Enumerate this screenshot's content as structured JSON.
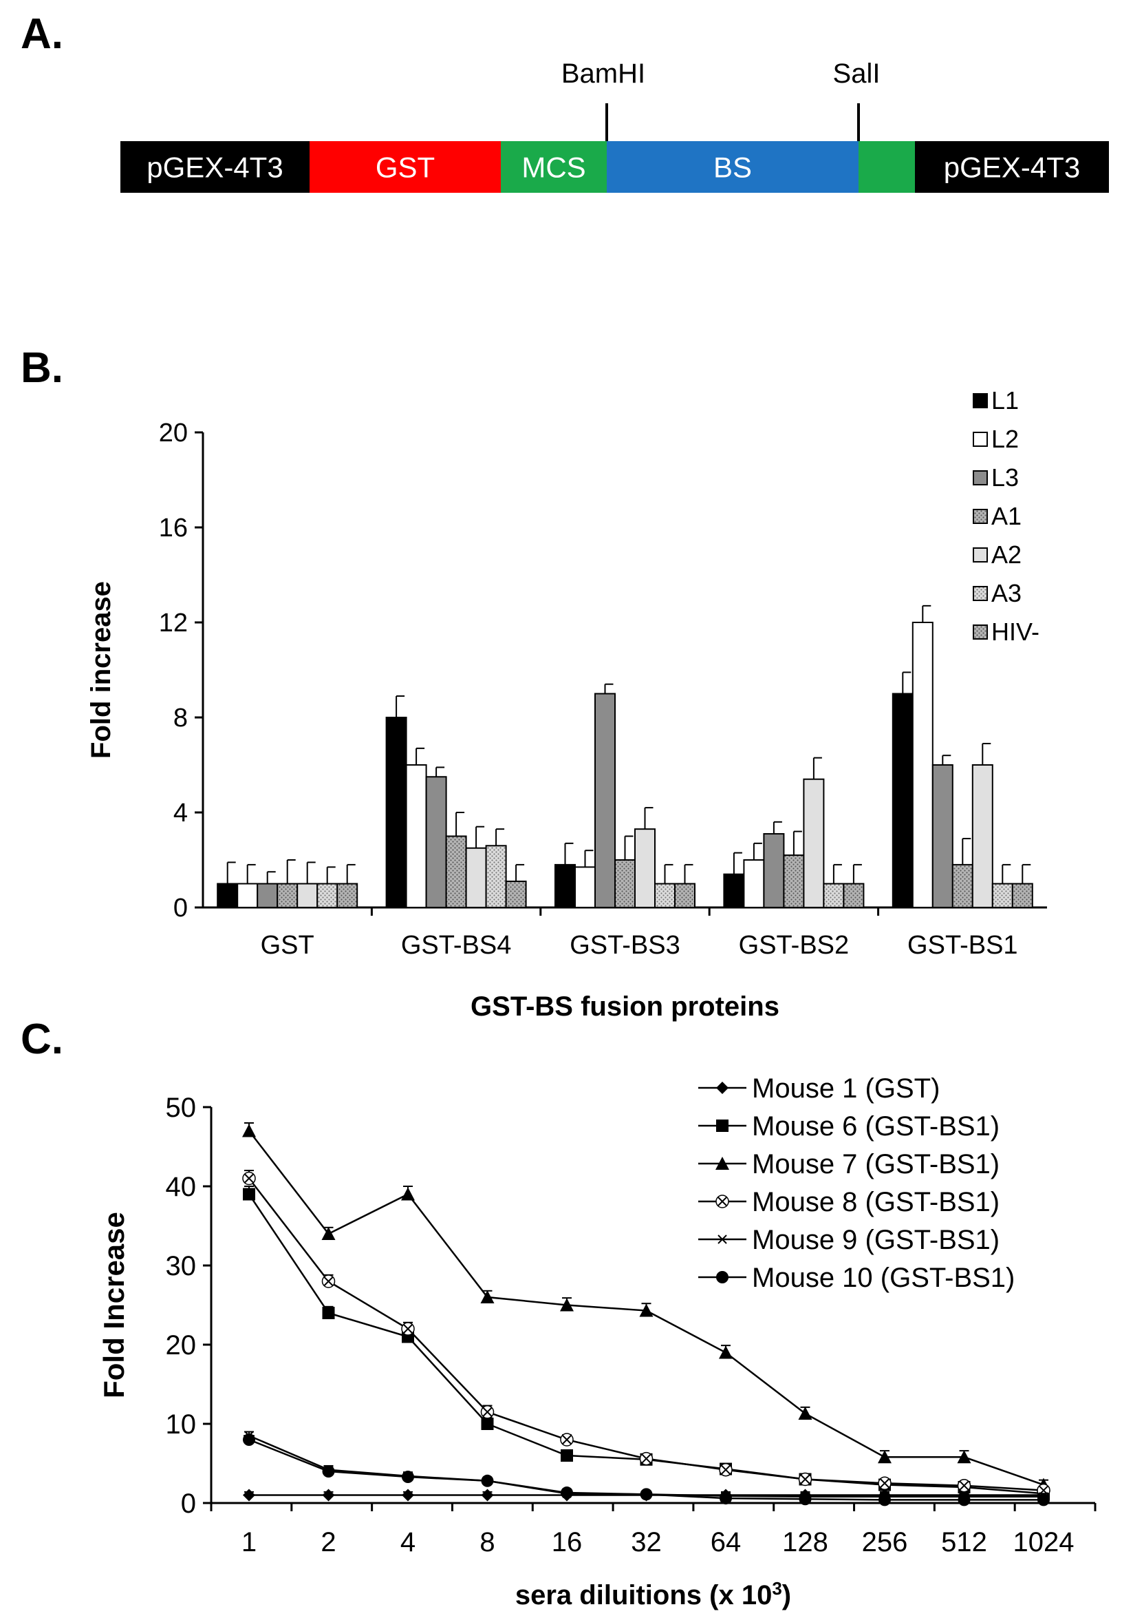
{
  "panels": {
    "a_label": "A.",
    "b_label": "B.",
    "c_label": "C."
  },
  "construct": {
    "segments": [
      {
        "label": "pGEX-4T3",
        "color": "#000000",
        "text_color": "#ffffff"
      },
      {
        "label": "GST",
        "color": "#ff0000",
        "text_color": "#ffffff"
      },
      {
        "label": "MCS",
        "color": "#1aaa4a",
        "text_color": "#ffffff"
      },
      {
        "label": "BS",
        "color": "#1f74c4",
        "text_color": "#ffffff"
      },
      {
        "label": "",
        "color": "#1aaa4a",
        "text_color": "#ffffff"
      },
      {
        "label": "pGEX-4T3",
        "color": "#000000",
        "text_color": "#ffffff"
      }
    ],
    "sites": [
      "BamHI",
      "SalI"
    ]
  },
  "chart_data": [
    {
      "type": "bar",
      "panel": "B",
      "title": "",
      "xlabel": "GST-BS fusion proteins",
      "ylabel": "Fold increase",
      "ylim": [
        0,
        20
      ],
      "yticks": [
        0,
        4,
        8,
        12,
        16,
        20
      ],
      "legend_position": "top-right",
      "categories": [
        "GST",
        "GST-BS4",
        "GST-BS3",
        "GST-BS2",
        "GST-BS1"
      ],
      "series": [
        {
          "name": "L1",
          "color": "#000000",
          "pattern": "solid",
          "values": [
            1.0,
            8.0,
            1.8,
            1.4,
            9.0
          ],
          "errors": [
            0.9,
            0.9,
            0.9,
            0.9,
            0.9
          ]
        },
        {
          "name": "L2",
          "color": "#ffffff",
          "pattern": "solid",
          "values": [
            1.0,
            6.0,
            1.7,
            2.0,
            12.0
          ],
          "errors": [
            0.8,
            0.7,
            0.7,
            0.7,
            0.7
          ]
        },
        {
          "name": "L3",
          "color": "#8c8c8c",
          "pattern": "solid",
          "values": [
            1.0,
            5.5,
            9.0,
            3.1,
            6.0
          ],
          "errors": [
            0.5,
            0.4,
            0.4,
            0.5,
            0.4
          ]
        },
        {
          "name": "A1",
          "color": "#9a9a9a",
          "pattern": "dots",
          "values": [
            1.0,
            3.0,
            2.0,
            2.2,
            1.8
          ],
          "errors": [
            1.0,
            1.0,
            1.0,
            1.0,
            1.1
          ]
        },
        {
          "name": "A2",
          "color": "#e0e0e0",
          "pattern": "solid",
          "values": [
            1.0,
            2.5,
            3.3,
            5.4,
            6.0
          ],
          "errors": [
            0.9,
            0.9,
            0.9,
            0.9,
            0.9
          ]
        },
        {
          "name": "A3",
          "color": "#c8c8c8",
          "pattern": "dots",
          "values": [
            1.0,
            2.6,
            1.0,
            1.0,
            1.0
          ],
          "errors": [
            0.7,
            0.7,
            0.8,
            0.8,
            0.8
          ]
        },
        {
          "name": "HIV-",
          "color": "#9a9a9a",
          "pattern": "dots",
          "values": [
            1.0,
            1.1,
            1.0,
            1.0,
            1.0
          ],
          "errors": [
            0.8,
            0.7,
            0.8,
            0.8,
            0.8
          ]
        }
      ]
    },
    {
      "type": "line",
      "panel": "C",
      "title": "",
      "xlabel": "sera diluitions (x 10",
      "xlabel_sup": "3",
      "xlabel_tail": ")",
      "ylabel": "Fold Increase",
      "ylim": [
        0,
        50
      ],
      "yticks": [
        0,
        10,
        20,
        30,
        40,
        50
      ],
      "legend_position": "top-right",
      "x": [
        "1",
        "2",
        "4",
        "8",
        "16",
        "32",
        "64",
        "128",
        "256",
        "512",
        "1024"
      ],
      "series": [
        {
          "name": "Mouse 1  (GST)",
          "marker": "diamond",
          "values": [
            1,
            1,
            1,
            1,
            1,
            1,
            1,
            1,
            1,
            1,
            1
          ],
          "errors": [
            0.4,
            0.4,
            0.4,
            0.4,
            0.4,
            0.4,
            0.4,
            0.4,
            0.4,
            0.4,
            0.4
          ]
        },
        {
          "name": "Mouse 6 (GST-BS1)",
          "marker": "square",
          "values": [
            39,
            24,
            21,
            10,
            6,
            5.5,
            4.3,
            3,
            2.3,
            2,
            1.2
          ],
          "errors": [
            1,
            0.8,
            0.8,
            0.8,
            0.6,
            0.5,
            0.5,
            0.5,
            0.5,
            0.5,
            0.5
          ]
        },
        {
          "name": "Mouse 7 (GST-BS1)",
          "marker": "triangle",
          "values": [
            47,
            34,
            39,
            26,
            25,
            24.3,
            19,
            11.3,
            5.8,
            5.8,
            2.3
          ],
          "errors": [
            1,
            0.8,
            1,
            0.8,
            0.9,
            0.9,
            0.9,
            0.8,
            0.8,
            0.8,
            0.6
          ]
        },
        {
          "name": "Mouse 8 (GST-BS1)",
          "marker": "x",
          "values": [
            41,
            28,
            22,
            11.5,
            8,
            5.6,
            4.2,
            3,
            2.5,
            2.2,
            1.6
          ],
          "errors": [
            1,
            0.8,
            0.8,
            0.8,
            0.6,
            0.5,
            0.5,
            0.5,
            0.5,
            0.5,
            0.5
          ]
        },
        {
          "name": "Mouse 9 (GST-BS1)",
          "marker": "star",
          "values": [
            8.5,
            4.2,
            3.4,
            2.8,
            1.2,
            1.1,
            0.9,
            0.8,
            0.8,
            0.8,
            0.8
          ],
          "errors": [
            0.5,
            0.5,
            0.5,
            0.4,
            0.4,
            0.4,
            0.4,
            0.4,
            0.4,
            0.4,
            0.4
          ]
        },
        {
          "name": "Mouse 10 (GST-BS1)",
          "marker": "circle",
          "values": [
            8,
            4,
            3.3,
            2.8,
            1.3,
            1.1,
            0.6,
            0.5,
            0.4,
            0.4,
            0.4
          ],
          "errors": [
            0.5,
            0.5,
            0.5,
            0.4,
            0.4,
            0.4,
            0.4,
            0.4,
            0.4,
            0.4,
            0.4
          ]
        }
      ]
    }
  ]
}
